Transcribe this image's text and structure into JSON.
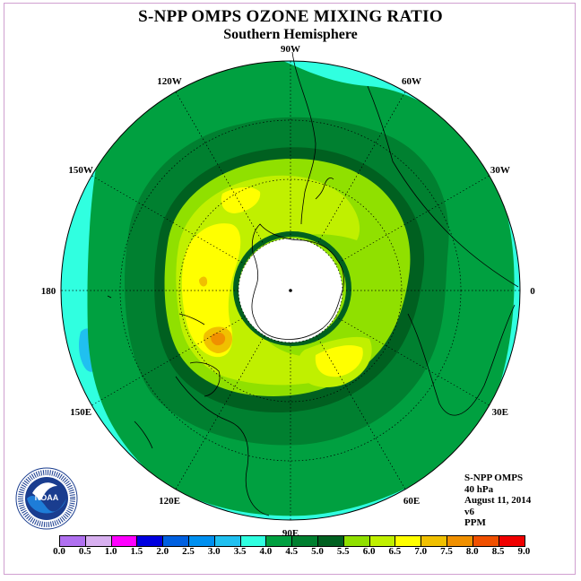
{
  "title": "S-NPP OMPS OZONE MIXING RATIO",
  "subtitle": "Southern Hemisphere",
  "longitude_labels": [
    {
      "text": "90W",
      "angle": 90
    },
    {
      "text": "60W",
      "angle": 60
    },
    {
      "text": "30W",
      "angle": 30
    },
    {
      "text": "0",
      "angle": 0
    },
    {
      "text": "30E",
      "angle": -30
    },
    {
      "text": "60E",
      "angle": -60
    },
    {
      "text": "90E",
      "angle": -90
    },
    {
      "text": "120E",
      "angle": -120
    },
    {
      "text": "150E",
      "angle": -150
    },
    {
      "text": "180",
      "angle": 180
    },
    {
      "text": "150W",
      "angle": 150
    },
    {
      "text": "120W",
      "angle": 120
    }
  ],
  "info": {
    "instrument": "S-NPP OMPS",
    "level": "40 hPa",
    "date": "August 11, 2014",
    "version": "v6",
    "units": "PPM"
  },
  "colorbar": {
    "labels": [
      "0.0",
      "0.5",
      "1.0",
      "1.5",
      "2.0",
      "2.5",
      "3.0",
      "3.5",
      "4.0",
      "4.5",
      "5.0",
      "5.5",
      "6.0",
      "6.5",
      "7.0",
      "7.5",
      "8.0",
      "8.5",
      "9.0"
    ],
    "colors": [
      "#b070f0",
      "#d8b0f0",
      "#ff00ff",
      "#0000e0",
      "#0060e0",
      "#0090f0",
      "#20c0f0",
      "#30ffe0",
      "#00a040",
      "#008030",
      "#006020",
      "#90e000",
      "#c0f000",
      "#ffff00",
      "#f0c000",
      "#f09000",
      "#f05000",
      "#f00000",
      "#805030"
    ]
  },
  "map_colors": {
    "lt_cyan": "#30ffe0",
    "blue": "#20c0f0",
    "green_40": "#00a040",
    "green_45": "#008030",
    "green_50": "#006020",
    "ygreen_55": "#90e000",
    "ygreen_60": "#c0f000",
    "yellow_65": "#ffff00",
    "orange_70": "#f0c000",
    "orange_75": "#f09000"
  },
  "logo": {
    "text": "NOAA",
    "ring_text": "NATIONAL OCEANIC AND ATMOSPHERIC ADMINISTRATION • U.S. DEPARTMENT OF COMMERCE"
  }
}
